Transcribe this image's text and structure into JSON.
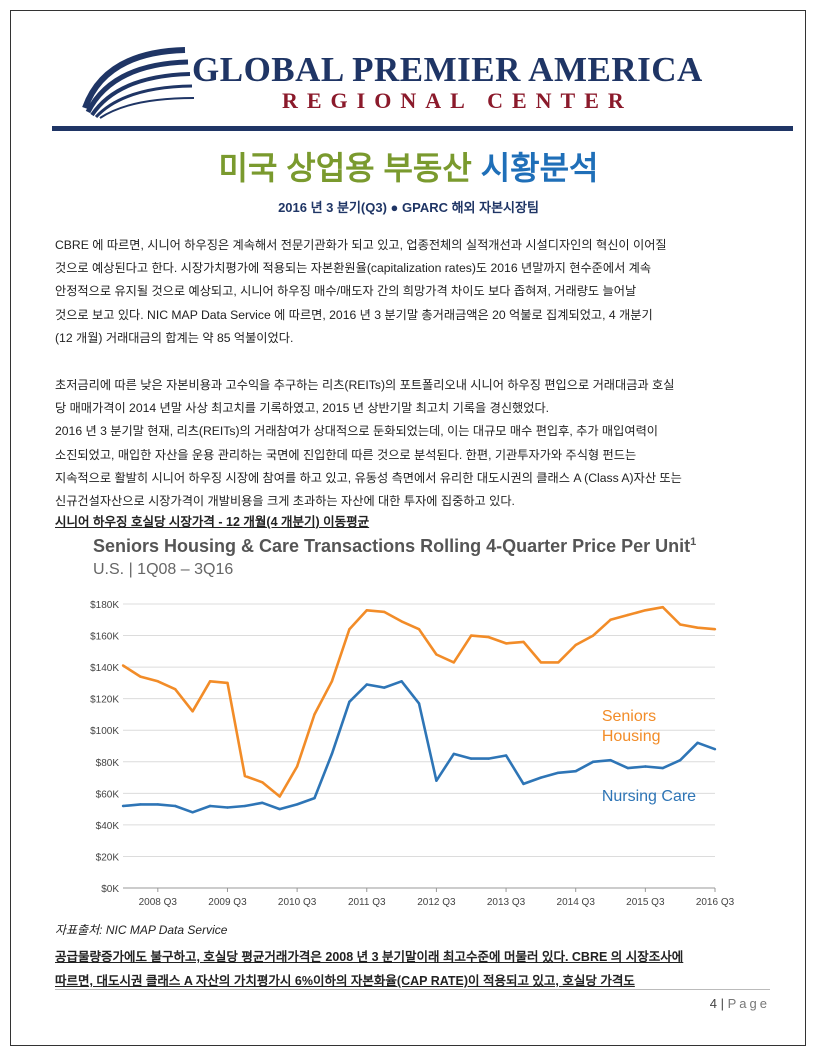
{
  "header": {
    "org_name": "GLOBAL PREMIER AMERICA",
    "org_sub": "REGIONAL CENTER"
  },
  "title": {
    "part1": "미국 상업용 부동산 ",
    "part2": "시황분석"
  },
  "subtitle": "2016 년 3 분기(Q3) ● GPARC 해외 자본시장팀",
  "para1": [
    "CBRE 에 따르면, 시니어 하우징은 계속해서 전문기관화가 되고 있고, 업종전체의 실적개선과 시설디자인의 혁신이 이어질",
    "것으로 예상된다고 한다.  시장가치평가에 적용되는 자본환원율(capitalization rates)도 2016 년말까지 현수준에서 계속",
    "안정적으로 유지될 것으로 예상되고, 시니어 하우징 매수/매도자 간의 희망가격 차이도 보다 좁혀져, 거래량도 늘어날",
    "것으로 보고 있다.   NIC MAP Data Service 에 따르면, 2016 년 3 분기말 총거래금액은 20 억불로 집계되었고, 4 개분기",
    "(12 개월) 거래대금의 합계는 약 85 억불이었다."
  ],
  "para2": [
    "초저금리에 따른 낮은 자본비용과 고수익을 추구하는 리츠(REITs)의 포트폴리오내 시니어 하우징 편입으로 거래대금과 호실",
    "당 매매가격이 2014 년말 사상 최고치를 기록하였고, 2015 년 상반기말 최고치 기록을 경신했었다.",
    "2016 년 3 분기말 현재, 리츠(REITs)의 거래참여가 상대적으로 둔화되었는데, 이는 대규모 매수 편입후, 추가 매입여력이",
    "소진되었고, 매입한 자산을 운용 관리하는 국면에 진입한데 따른 것으로 분석된다. 한편, 기관투자가와 주식형 펀드는",
    "지속적으로 활발히 시니어 하우징 시장에 참여를 하고 있고, 유동성 측면에서 유리한 대도시권의 클래스 A (Class A)자산 또는",
    "신규건설자산으로 시장가격이 개발비용을 크게 초과하는 자산에 대한 투자에 집중하고 있다."
  ],
  "chart_heading": "시니어 하우징 호실당 시장가격 - 12 개월(4 개분기) 이동평균",
  "chart_data": {
    "type": "line",
    "title": "Seniors Housing & Care Transactions Rolling 4-Quarter Price Per Unit",
    "title_superscript": "1",
    "subtitle": "U.S. | 1Q08 – 3Q16",
    "x": [
      "1Q08",
      "2Q08",
      "3Q08",
      "4Q08",
      "1Q09",
      "2Q09",
      "3Q09",
      "4Q09",
      "1Q10",
      "2Q10",
      "3Q10",
      "4Q10",
      "1Q11",
      "2Q11",
      "3Q11",
      "4Q11",
      "1Q12",
      "2Q12",
      "3Q12",
      "4Q12",
      "1Q13",
      "2Q13",
      "3Q13",
      "4Q13",
      "1Q14",
      "2Q14",
      "3Q14",
      "4Q14",
      "1Q15",
      "2Q15",
      "3Q15",
      "4Q15",
      "1Q16",
      "2Q16",
      "3Q16"
    ],
    "x_tick_labels": [
      "2008 Q3",
      "2009 Q3",
      "2010 Q3",
      "2011 Q3",
      "2012 Q3",
      "2013 Q3",
      "2014 Q3",
      "2015 Q3",
      "2016 Q3"
    ],
    "y_tick_labels": [
      "$0K",
      "$20K",
      "$40K",
      "$60K",
      "$80K",
      "$100K",
      "$120K",
      "$140K",
      "$160K",
      "$180K"
    ],
    "ylim": [
      0,
      180000
    ],
    "grid": true,
    "series": [
      {
        "name": "Seniors Housing",
        "color": "#f28c28",
        "label_lines": [
          "Seniors",
          "Housing"
        ],
        "values": [
          141000,
          134000,
          131000,
          126000,
          112000,
          131000,
          130000,
          71000,
          67000,
          58000,
          77000,
          110000,
          131000,
          164000,
          176000,
          175000,
          169000,
          164000,
          148000,
          143000,
          160000,
          159000,
          155000,
          156000,
          143000,
          143000,
          154000,
          160000,
          170000,
          173000,
          176000,
          178000,
          167000,
          165000,
          164000
        ]
      },
      {
        "name": "Nursing Care",
        "color": "#2e75b6",
        "label_lines": [
          "Nursing Care"
        ],
        "values": [
          52000,
          53000,
          53000,
          52000,
          48000,
          52000,
          51000,
          52000,
          54000,
          50000,
          53000,
          57000,
          85000,
          118000,
          129000,
          127000,
          131000,
          117000,
          68000,
          85000,
          82000,
          82000,
          84000,
          66000,
          70000,
          73000,
          74000,
          80000,
          81000,
          76000,
          77000,
          76000,
          81000,
          92000,
          88000
        ]
      }
    ]
  },
  "source": "자표출처: NIC MAP Data Service",
  "bottom": [
    "공급물량증가에도 불구하고, 호실당 평균거래가격은 2008 년 3 분기말이래 최고수준에 머물러 있다. CBRE 의 시장조사에",
    "따르면, 대도시권 클래스 A 자산의 가치평가시 6%이하의 자본화율(CAP RATE)이 적용되고 있고, 호실당 가격도"
  ],
  "footer": {
    "page_number": "4",
    "separator": "|",
    "page_label": "Page"
  }
}
